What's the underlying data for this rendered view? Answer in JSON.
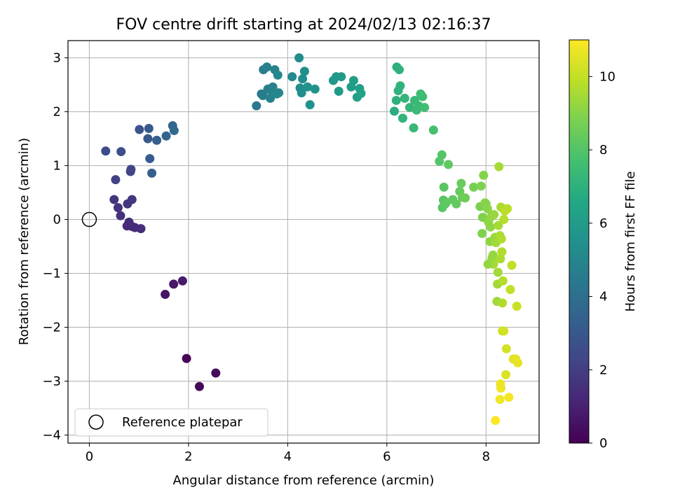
{
  "chart_data": {
    "type": "scatter",
    "title": "FOV centre drift starting at 2024/02/13 02:16:37",
    "xlabel": "Angular distance from reference (arcmin)",
    "ylabel": "Rotation from reference (arcmin)",
    "xlim": [
      -0.43,
      9.07
    ],
    "ylim": [
      -4.15,
      3.32
    ],
    "xticks": [
      0,
      2,
      4,
      6,
      8
    ],
    "yticks": [
      3,
      2,
      1,
      0,
      -1,
      -2,
      -3,
      -4
    ],
    "xtick_labels": [
      "0",
      "2",
      "4",
      "6",
      "8"
    ],
    "ytick_labels": [
      "3",
      "2",
      "1",
      "0",
      "−1",
      "−2",
      "−3",
      "−4"
    ],
    "grid": true,
    "legend": {
      "position": "lower-left",
      "entries": [
        "Reference platepar"
      ]
    },
    "reference_point": {
      "x": 0,
      "y": 0
    },
    "colorbar": {
      "label": "Hours from first FF file",
      "colormap": "viridis",
      "range": [
        0,
        11
      ],
      "ticks": [
        0,
        2,
        4,
        6,
        8,
        10
      ],
      "tick_labels": [
        "0",
        "2",
        "4",
        "6",
        "8",
        "10"
      ]
    },
    "series": [
      {
        "points": [
          {
            "x": 1.96,
            "y": -2.58,
            "t": 0.1
          },
          {
            "x": 2.22,
            "y": -3.1,
            "t": 0.2
          },
          {
            "x": 2.55,
            "y": -2.85,
            "t": 0.3
          },
          {
            "x": 1.53,
            "y": -1.39,
            "t": 0.6
          },
          {
            "x": 1.7,
            "y": -1.2,
            "t": 0.7
          },
          {
            "x": 1.88,
            "y": -1.14,
            "t": 0.8
          },
          {
            "x": 0.76,
            "y": -0.12,
            "t": 1.3
          },
          {
            "x": 0.8,
            "y": -0.05,
            "t": 1.35
          },
          {
            "x": 0.92,
            "y": -0.15,
            "t": 1.4
          },
          {
            "x": 1.04,
            "y": -0.17,
            "t": 1.45
          },
          {
            "x": 0.86,
            "y": -0.13,
            "t": 1.4
          },
          {
            "x": 0.63,
            "y": 0.07,
            "t": 1.55
          },
          {
            "x": 0.58,
            "y": 0.22,
            "t": 1.6
          },
          {
            "x": 0.5,
            "y": 0.37,
            "t": 1.65
          },
          {
            "x": 0.77,
            "y": 0.29,
            "t": 1.7
          },
          {
            "x": 0.86,
            "y": 0.37,
            "t": 1.75
          },
          {
            "x": 0.53,
            "y": 0.74,
            "t": 2.1
          },
          {
            "x": 0.83,
            "y": 0.89,
            "t": 2.2
          },
          {
            "x": 0.84,
            "y": 0.93,
            "t": 2.25
          },
          {
            "x": 0.33,
            "y": 1.27,
            "t": 2.5
          },
          {
            "x": 0.64,
            "y": 1.26,
            "t": 2.6
          },
          {
            "x": 1.01,
            "y": 1.67,
            "t": 2.8
          },
          {
            "x": 1.18,
            "y": 1.5,
            "t": 3.0
          },
          {
            "x": 1.2,
            "y": 1.69,
            "t": 3.05
          },
          {
            "x": 1.22,
            "y": 1.13,
            "t": 3.15
          },
          {
            "x": 1.26,
            "y": 0.86,
            "t": 3.3
          },
          {
            "x": 1.36,
            "y": 1.47,
            "t": 3.4
          },
          {
            "x": 1.55,
            "y": 1.55,
            "t": 3.55
          },
          {
            "x": 1.68,
            "y": 1.74,
            "t": 3.7
          },
          {
            "x": 1.71,
            "y": 1.65,
            "t": 3.75
          },
          {
            "x": 3.37,
            "y": 2.11,
            "t": 4.4
          },
          {
            "x": 3.47,
            "y": 2.33,
            "t": 4.5
          },
          {
            "x": 3.5,
            "y": 2.3,
            "t": 4.55
          },
          {
            "x": 3.51,
            "y": 2.78,
            "t": 4.65
          },
          {
            "x": 3.58,
            "y": 2.83,
            "t": 4.7
          },
          {
            "x": 3.6,
            "y": 2.42,
            "t": 4.75
          },
          {
            "x": 3.65,
            "y": 2.25,
            "t": 4.8
          },
          {
            "x": 3.68,
            "y": 2.37,
            "t": 4.82
          },
          {
            "x": 3.7,
            "y": 2.46,
            "t": 4.85
          },
          {
            "x": 3.74,
            "y": 2.78,
            "t": 4.9
          },
          {
            "x": 3.78,
            "y": 2.33,
            "t": 4.95
          },
          {
            "x": 3.8,
            "y": 2.68,
            "t": 5.0
          },
          {
            "x": 3.82,
            "y": 2.35,
            "t": 5.05
          },
          {
            "x": 4.09,
            "y": 2.65,
            "t": 5.2
          },
          {
            "x": 4.23,
            "y": 3.0,
            "t": 5.25
          },
          {
            "x": 4.25,
            "y": 2.44,
            "t": 5.3
          },
          {
            "x": 4.28,
            "y": 2.35,
            "t": 5.35
          },
          {
            "x": 4.3,
            "y": 2.61,
            "t": 5.4
          },
          {
            "x": 4.34,
            "y": 2.75,
            "t": 5.45
          },
          {
            "x": 4.4,
            "y": 2.46,
            "t": 5.5
          },
          {
            "x": 4.45,
            "y": 2.13,
            "t": 5.55
          },
          {
            "x": 4.55,
            "y": 2.42,
            "t": 5.6
          },
          {
            "x": 4.92,
            "y": 2.58,
            "t": 5.8
          },
          {
            "x": 4.98,
            "y": 2.65,
            "t": 5.85
          },
          {
            "x": 5.03,
            "y": 2.38,
            "t": 5.9
          },
          {
            "x": 5.08,
            "y": 2.65,
            "t": 5.95
          },
          {
            "x": 5.28,
            "y": 2.46,
            "t": 6.05
          },
          {
            "x": 5.33,
            "y": 2.58,
            "t": 6.1
          },
          {
            "x": 5.4,
            "y": 2.27,
            "t": 6.15
          },
          {
            "x": 5.45,
            "y": 2.43,
            "t": 6.2
          },
          {
            "x": 5.48,
            "y": 2.34,
            "t": 6.25
          },
          {
            "x": 6.15,
            "y": 2.01,
            "t": 6.9
          },
          {
            "x": 6.19,
            "y": 2.21,
            "t": 6.95
          },
          {
            "x": 6.2,
            "y": 2.83,
            "t": 7.0
          },
          {
            "x": 6.23,
            "y": 2.39,
            "t": 7.05
          },
          {
            "x": 6.25,
            "y": 2.78,
            "t": 7.05
          },
          {
            "x": 6.27,
            "y": 2.48,
            "t": 7.1
          },
          {
            "x": 6.32,
            "y": 1.88,
            "t": 7.15
          },
          {
            "x": 6.36,
            "y": 2.25,
            "t": 7.2
          },
          {
            "x": 6.46,
            "y": 2.08,
            "t": 7.25
          },
          {
            "x": 6.54,
            "y": 1.7,
            "t": 7.3
          },
          {
            "x": 6.56,
            "y": 2.21,
            "t": 7.35
          },
          {
            "x": 6.6,
            "y": 2.03,
            "t": 7.4
          },
          {
            "x": 6.64,
            "y": 2.11,
            "t": 7.45
          },
          {
            "x": 6.68,
            "y": 2.33,
            "t": 7.5
          },
          {
            "x": 6.72,
            "y": 2.28,
            "t": 7.55
          },
          {
            "x": 6.76,
            "y": 2.08,
            "t": 7.6
          },
          {
            "x": 6.94,
            "y": 1.66,
            "t": 7.75
          },
          {
            "x": 7.06,
            "y": 1.08,
            "t": 8.0
          },
          {
            "x": 7.11,
            "y": 1.2,
            "t": 8.05
          },
          {
            "x": 7.12,
            "y": 0.22,
            "t": 8.1
          },
          {
            "x": 7.14,
            "y": 0.36,
            "t": 8.1
          },
          {
            "x": 7.15,
            "y": 0.6,
            "t": 8.15
          },
          {
            "x": 7.18,
            "y": 0.29,
            "t": 8.2
          },
          {
            "x": 7.2,
            "y": 0.32,
            "t": 8.22
          },
          {
            "x": 7.24,
            "y": 1.02,
            "t": 8.25
          },
          {
            "x": 7.33,
            "y": 0.37,
            "t": 8.3
          },
          {
            "x": 7.4,
            "y": 0.29,
            "t": 8.35
          },
          {
            "x": 7.47,
            "y": 0.52,
            "t": 8.4
          },
          {
            "x": 7.5,
            "y": 0.67,
            "t": 8.45
          },
          {
            "x": 7.52,
            "y": 0.41,
            "t": 8.5
          },
          {
            "x": 7.58,
            "y": 0.4,
            "t": 8.55
          },
          {
            "x": 7.75,
            "y": 0.6,
            "t": 8.7
          },
          {
            "x": 7.88,
            "y": 0.24,
            "t": 8.8
          },
          {
            "x": 7.9,
            "y": 0.62,
            "t": 8.85
          },
          {
            "x": 7.93,
            "y": 0.04,
            "t": 8.9
          },
          {
            "x": 7.92,
            "y": -0.26,
            "t": 8.9
          },
          {
            "x": 7.95,
            "y": 0.82,
            "t": 8.95
          },
          {
            "x": 7.98,
            "y": 0.31,
            "t": 9.0
          },
          {
            "x": 8.0,
            "y": 0.29,
            "t": 9.0
          },
          {
            "x": 8.03,
            "y": 0.2,
            "t": 9.05
          },
          {
            "x": 8.05,
            "y": -0.05,
            "t": 9.1
          },
          {
            "x": 8.08,
            "y": -0.41,
            "t": 9.15
          },
          {
            "x": 8.09,
            "y": -0.14,
            "t": 9.15
          },
          {
            "x": 8.1,
            "y": 0.05,
            "t": 9.2
          },
          {
            "x": 8.12,
            "y": -0.72,
            "t": 9.25
          },
          {
            "x": 8.14,
            "y": -0.66,
            "t": 9.25
          },
          {
            "x": 8.16,
            "y": 0.09,
            "t": 9.3
          },
          {
            "x": 8.18,
            "y": -0.33,
            "t": 9.35
          },
          {
            "x": 8.2,
            "y": -0.43,
            "t": 9.4
          },
          {
            "x": 8.22,
            "y": -1.52,
            "t": 9.4
          },
          {
            "x": 8.23,
            "y": -1.2,
            "t": 9.45
          },
          {
            "x": 8.24,
            "y": -0.98,
            "t": 9.45
          },
          {
            "x": 8.25,
            "y": -0.11,
            "t": 9.5
          },
          {
            "x": 8.26,
            "y": 0.98,
            "t": 9.5
          },
          {
            "x": 8.28,
            "y": -0.3,
            "t": 9.55
          },
          {
            "x": 8.29,
            "y": -0.73,
            "t": 9.6
          },
          {
            "x": 8.3,
            "y": 0.23,
            "t": 9.6
          },
          {
            "x": 8.31,
            "y": -0.36,
            "t": 9.65
          },
          {
            "x": 8.32,
            "y": -0.6,
            "t": 9.7
          },
          {
            "x": 8.33,
            "y": -1.55,
            "t": 9.7
          },
          {
            "x": 8.34,
            "y": -1.14,
            "t": 9.75
          },
          {
            "x": 8.36,
            "y": 0.0,
            "t": 9.75
          },
          {
            "x": 8.38,
            "y": 0.16,
            "t": 9.8
          },
          {
            "x": 8.43,
            "y": 0.2,
            "t": 9.85
          },
          {
            "x": 8.15,
            "y": -0.83,
            "t": 9.5
          },
          {
            "x": 8.04,
            "y": -0.83,
            "t": 9.2
          },
          {
            "x": 8.33,
            "y": -2.07,
            "t": 10.2
          },
          {
            "x": 8.36,
            "y": -2.07,
            "t": 10.25
          },
          {
            "x": 8.41,
            "y": -2.4,
            "t": 10.3
          },
          {
            "x": 8.4,
            "y": -2.88,
            "t": 10.4
          },
          {
            "x": 8.49,
            "y": -1.3,
            "t": 10.0
          },
          {
            "x": 8.52,
            "y": -0.85,
            "t": 9.95
          },
          {
            "x": 8.55,
            "y": -2.59,
            "t": 10.5
          },
          {
            "x": 8.6,
            "y": -2.59,
            "t": 10.55
          },
          {
            "x": 8.62,
            "y": -1.61,
            "t": 10.1
          },
          {
            "x": 8.64,
            "y": -2.66,
            "t": 10.6
          },
          {
            "x": 8.29,
            "y": -3.05,
            "t": 10.7
          },
          {
            "x": 8.3,
            "y": -3.13,
            "t": 10.75
          },
          {
            "x": 8.28,
            "y": -3.34,
            "t": 10.8
          },
          {
            "x": 8.46,
            "y": -3.3,
            "t": 10.85
          },
          {
            "x": 8.19,
            "y": -3.73,
            "t": 11.0
          }
        ]
      }
    ]
  }
}
